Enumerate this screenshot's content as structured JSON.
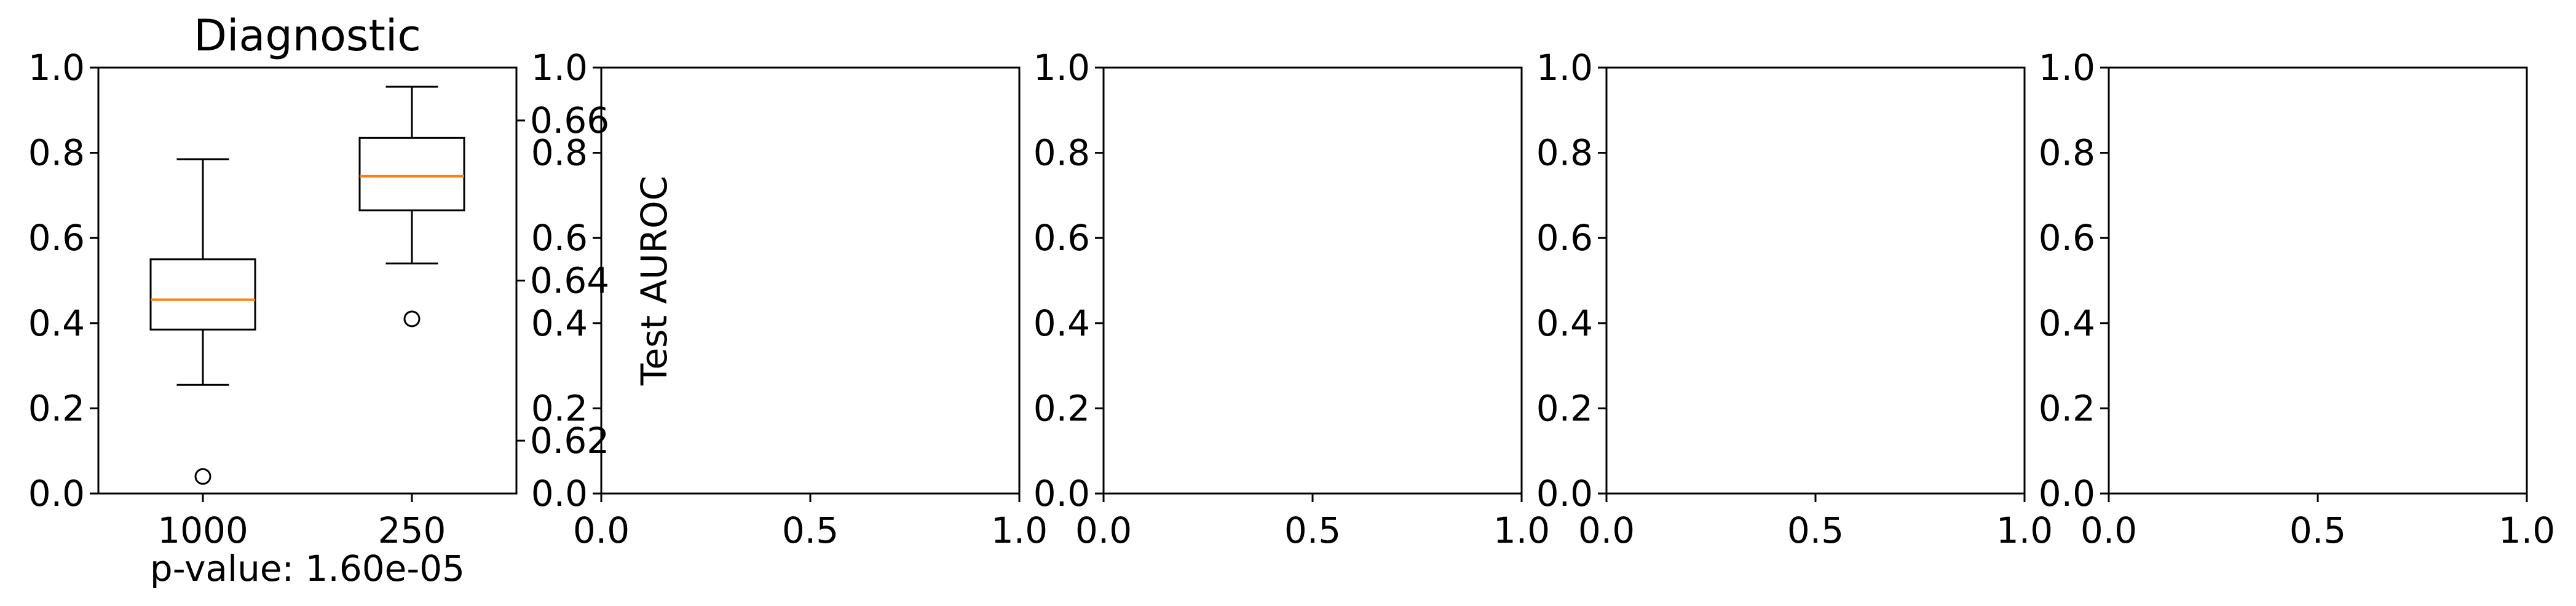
{
  "chart_data": [
    {
      "type": "box",
      "title": "Diagnostic",
      "categories": [
        "1000",
        "250"
      ],
      "xlabel": "",
      "ylabel": "",
      "ylim": [
        0.0,
        1.0
      ],
      "yticks": [
        "0.0",
        "0.2",
        "0.4",
        "0.6",
        "0.8",
        "1.0"
      ],
      "series": [
        {
          "whislo": 0.255,
          "q1": 0.385,
          "med": 0.455,
          "q3": 0.55,
          "whishi": 0.785,
          "fliers": [
            0.04
          ]
        },
        {
          "whislo": 0.54,
          "q1": 0.665,
          "med": 0.745,
          "q3": 0.835,
          "whishi": 0.955,
          "fliers": [
            0.41
          ]
        }
      ],
      "annotation": "p-value: 1.60e-05",
      "secondary_axis": {
        "ylabel": "Test AUROC",
        "range": [
          0.6134,
          0.6666
        ],
        "ticks": [
          {
            "label": "0.62",
            "value": 0.62
          },
          {
            "label": "0.64",
            "value": 0.64
          },
          {
            "label": "0.66",
            "value": 0.66
          }
        ]
      },
      "colors": {
        "median": "#ff7f0e",
        "box": "#000000"
      }
    },
    {
      "type": "empty",
      "xlim": [
        0.0,
        1.0
      ],
      "ylim": [
        0.0,
        1.0
      ],
      "xticks": [
        "0.0",
        "0.5",
        "1.0"
      ],
      "yticks": [
        "0.0",
        "0.2",
        "0.4",
        "0.6",
        "0.8",
        "1.0"
      ]
    },
    {
      "type": "empty",
      "xlim": [
        0.0,
        1.0
      ],
      "ylim": [
        0.0,
        1.0
      ],
      "xticks": [
        "0.0",
        "0.5",
        "1.0"
      ],
      "yticks": [
        "0.0",
        "0.2",
        "0.4",
        "0.6",
        "0.8",
        "1.0"
      ]
    },
    {
      "type": "empty",
      "xlim": [
        0.0,
        1.0
      ],
      "ylim": [
        0.0,
        1.0
      ],
      "xticks": [
        "0.0",
        "0.5",
        "1.0"
      ],
      "yticks": [
        "0.0",
        "0.2",
        "0.4",
        "0.6",
        "0.8",
        "1.0"
      ]
    },
    {
      "type": "empty",
      "xlim": [
        0.0,
        1.0
      ],
      "ylim": [
        0.0,
        1.0
      ],
      "xticks": [
        "0.0",
        "0.5",
        "1.0"
      ],
      "yticks": [
        "0.0",
        "0.2",
        "0.4",
        "0.6",
        "0.8",
        "1.0"
      ]
    }
  ]
}
